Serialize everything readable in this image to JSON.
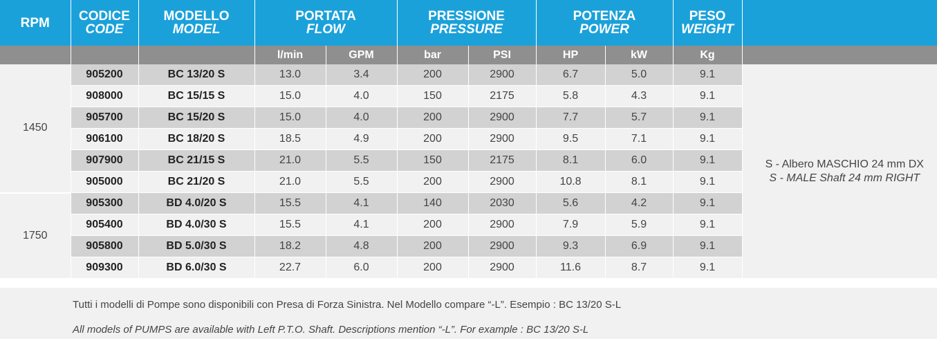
{
  "header": {
    "rpm": "RPM",
    "code_it": "CODICE",
    "code_en": "CODE",
    "model_it": "MODELLO",
    "model_en": "MODEL",
    "flow_it": "PORTATA",
    "flow_en": "FLOW",
    "pressure_it": "PRESSIONE",
    "pressure_en": "PRESSURE",
    "power_it": "POTENZA",
    "power_en": "POWER",
    "weight_it": "PESO",
    "weight_en": "WEIGHT"
  },
  "units": [
    "l/min",
    "GPM",
    "bar",
    "PSI",
    "HP",
    "kW",
    "Kg"
  ],
  "rpm_groups": [
    "1450",
    "1750"
  ],
  "rows": [
    {
      "code": "905200",
      "model": "BC 13/20 S",
      "lmin": "13.0",
      "gpm": "3.4",
      "bar": "200",
      "psi": "2900",
      "hp": "6.7",
      "kw": "5.0",
      "kg": "9.1"
    },
    {
      "code": "908000",
      "model": "BC 15/15 S",
      "lmin": "15.0",
      "gpm": "4.0",
      "bar": "150",
      "psi": "2175",
      "hp": "5.8",
      "kw": "4.3",
      "kg": "9.1"
    },
    {
      "code": "905700",
      "model": "BC 15/20 S",
      "lmin": "15.0",
      "gpm": "4.0",
      "bar": "200",
      "psi": "2900",
      "hp": "7.7",
      "kw": "5.7",
      "kg": "9.1"
    },
    {
      "code": "906100",
      "model": "BC 18/20 S",
      "lmin": "18.5",
      "gpm": "4.9",
      "bar": "200",
      "psi": "2900",
      "hp": "9.5",
      "kw": "7.1",
      "kg": "9.1"
    },
    {
      "code": "907900",
      "model": "BC 21/15 S",
      "lmin": "21.0",
      "gpm": "5.5",
      "bar": "150",
      "psi": "2175",
      "hp": "8.1",
      "kw": "6.0",
      "kg": "9.1"
    },
    {
      "code": "905000",
      "model": "BC 21/20 S",
      "lmin": "21.0",
      "gpm": "5.5",
      "bar": "200",
      "psi": "2900",
      "hp": "10.8",
      "kw": "8.1",
      "kg": "9.1"
    },
    {
      "code": "905300",
      "model": "BD 4.0/20 S",
      "lmin": "15.5",
      "gpm": "4.1",
      "bar": "140",
      "psi": "2030",
      "hp": "5.6",
      "kw": "4.2",
      "kg": "9.1"
    },
    {
      "code": "905400",
      "model": "BD 4.0/30 S",
      "lmin": "15.5",
      "gpm": "4.1",
      "bar": "200",
      "psi": "2900",
      "hp": "7.9",
      "kw": "5.9",
      "kg": "9.1"
    },
    {
      "code": "905800",
      "model": "BD 5.0/30 S",
      "lmin": "18.2",
      "gpm": "4.8",
      "bar": "200",
      "psi": "2900",
      "hp": "9.3",
      "kw": "6.9",
      "kg": "9.1"
    },
    {
      "code": "909300",
      "model": "BD 6.0/30 S",
      "lmin": "22.7",
      "gpm": "6.0",
      "bar": "200",
      "psi": "2900",
      "hp": "11.6",
      "kw": "8.7",
      "kg": "9.1"
    }
  ],
  "note": {
    "it": "S - Albero MASCHIO 24 mm DX",
    "en": "S - MALE Shaft 24 mm RIGHT"
  },
  "footer": {
    "it": "Tutti i modelli di Pompe sono disponibili con Presa di Forza Sinistra. Nel Modello compare “-L”. Esempio : BC 13/20 S-L",
    "en": "All models of PUMPS are available with Left P.T.O. Shaft. Descriptions mention “-L”. For example : BC 13/20 S-L"
  },
  "colors": {
    "header_blue": "#1ba1da",
    "unit_gray": "#8f8f8f",
    "row_dark": "#d2d2d3",
    "row_light": "#f1f1f1"
  }
}
